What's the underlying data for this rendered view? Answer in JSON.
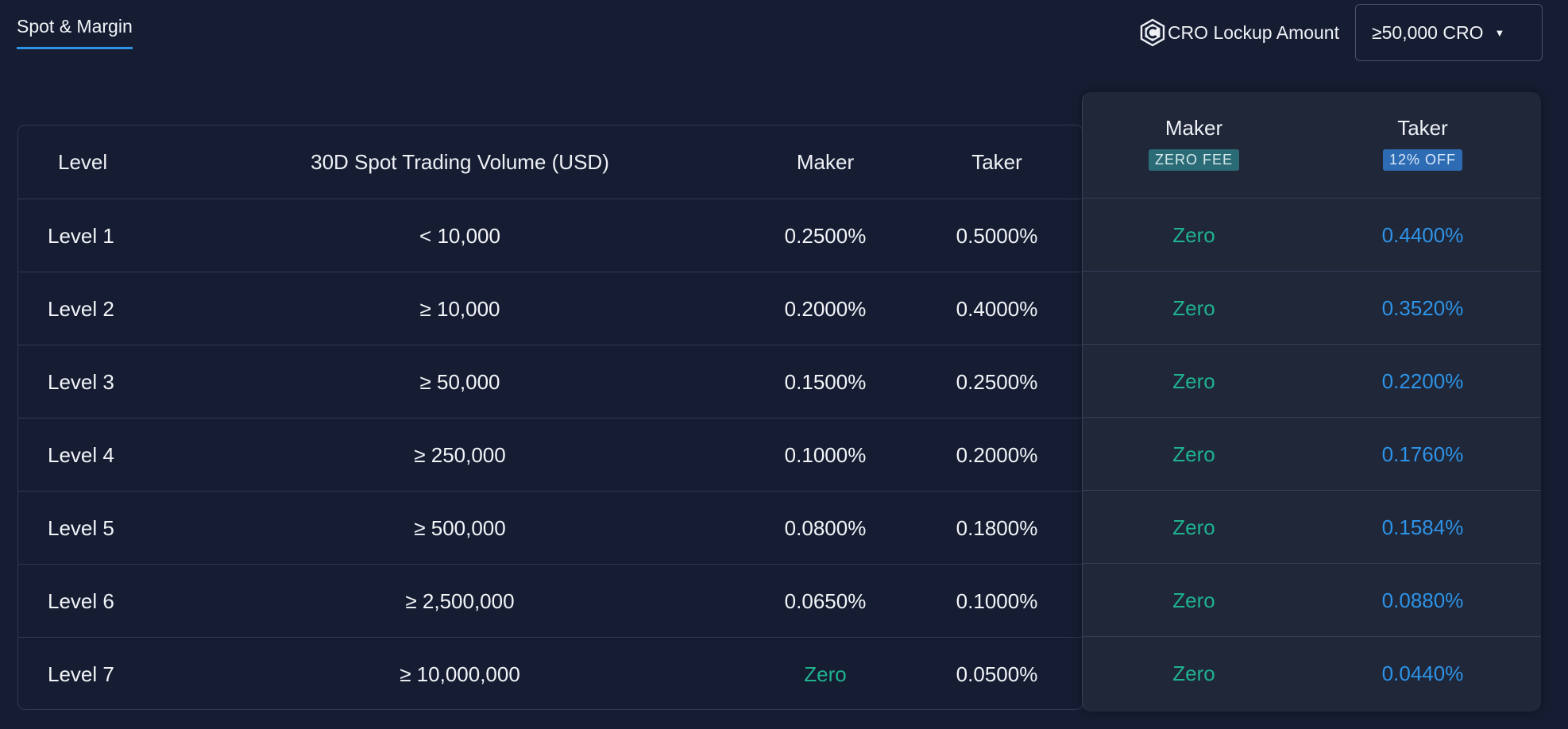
{
  "tab": {
    "label": "Spot & Margin"
  },
  "lockup": {
    "label": "CRO Lockup Amount",
    "selected": "≥50,000 CRO",
    "icon": "cro-logo-icon"
  },
  "table": {
    "headers": {
      "level": "Level",
      "volume": "30D Spot Trading Volume (USD)",
      "maker": "Maker",
      "taker": "Taker"
    },
    "rows": [
      {
        "level": "Level 1",
        "volume": "< 10,000",
        "maker": "0.2500%",
        "taker": "0.5000%"
      },
      {
        "level": "Level 2",
        "volume": "≥ 10,000",
        "maker": "0.2000%",
        "taker": "0.4000%"
      },
      {
        "level": "Level 3",
        "volume": "≥ 50,000",
        "maker": "0.1500%",
        "taker": "0.2500%"
      },
      {
        "level": "Level 4",
        "volume": "≥ 250,000",
        "maker": "0.1000%",
        "taker": "0.2000%"
      },
      {
        "level": "Level 5",
        "volume": "≥ 500,000",
        "maker": "0.0800%",
        "taker": "0.1800%"
      },
      {
        "level": "Level 6",
        "volume": "≥ 2,500,000",
        "maker": "0.0650%",
        "taker": "0.1000%"
      },
      {
        "level": "Level 7",
        "volume": "≥ 10,000,000",
        "maker": "Zero",
        "taker": "0.0500%"
      }
    ]
  },
  "cro_panel": {
    "maker_header": "Maker",
    "maker_badge": "ZERO FEE",
    "taker_header": "Taker",
    "taker_badge": "12% OFF",
    "rows": [
      {
        "maker": "Zero",
        "taker": "0.4400%"
      },
      {
        "maker": "Zero",
        "taker": "0.3520%"
      },
      {
        "maker": "Zero",
        "taker": "0.2200%"
      },
      {
        "maker": "Zero",
        "taker": "0.1760%"
      },
      {
        "maker": "Zero",
        "taker": "0.1584%"
      },
      {
        "maker": "Zero",
        "taker": "0.0880%"
      },
      {
        "maker": "Zero",
        "taker": "0.0440%"
      }
    ]
  },
  "colors": {
    "background": "#161d32",
    "accent_blue": "#2e93e6",
    "zero_green": "#1fb28f"
  }
}
